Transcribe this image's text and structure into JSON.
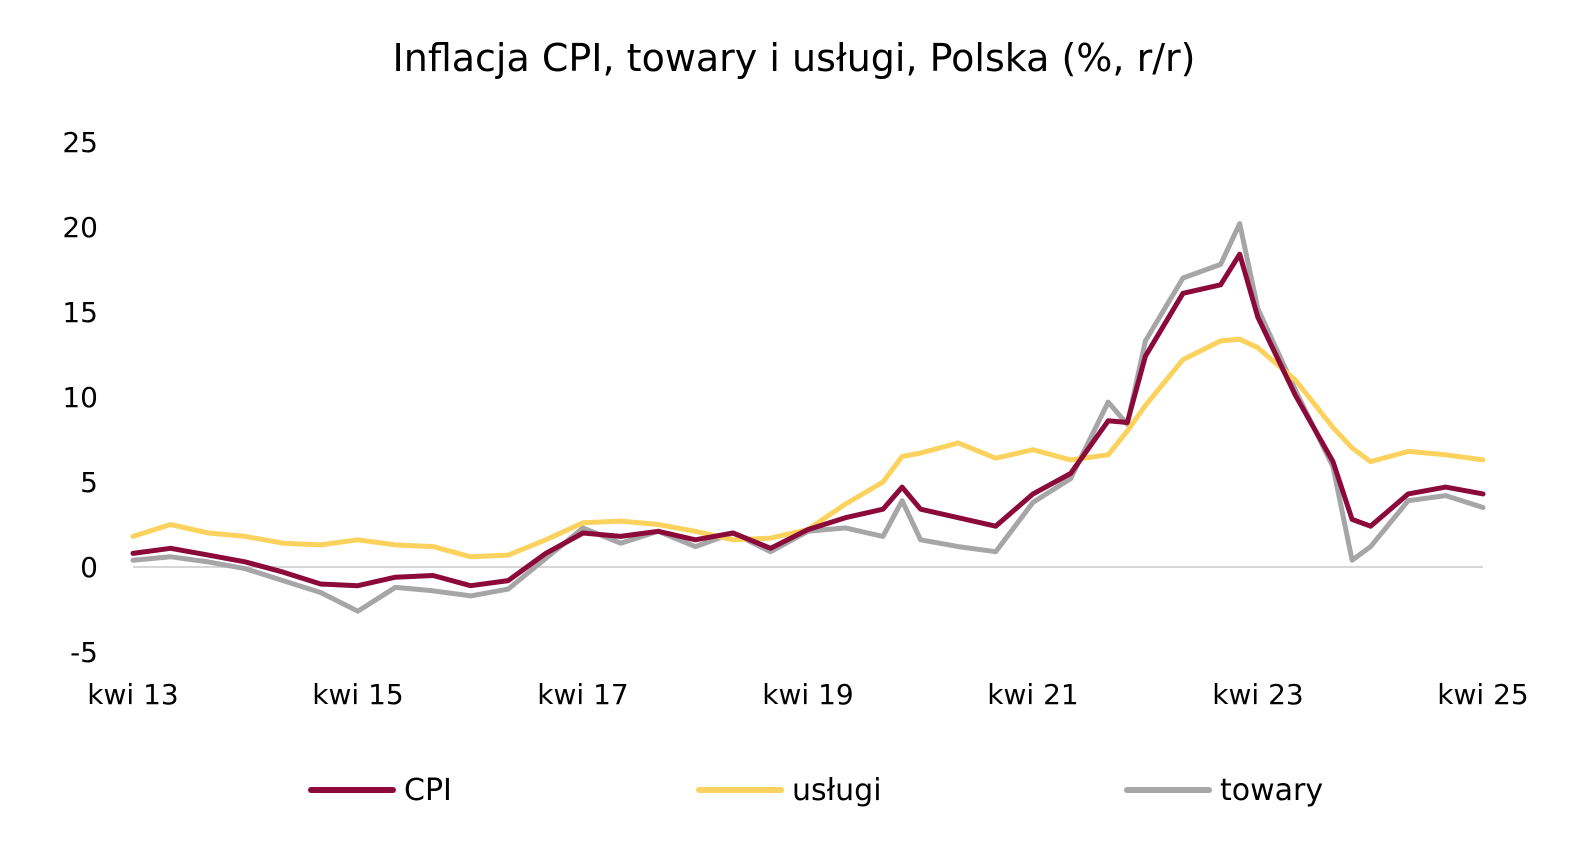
{
  "chart_data": {
    "type": "line",
    "title": "Inflacja CPI, towary i usługi, Polska (%, r/r)",
    "xlabel": "",
    "ylabel": "",
    "ylim": [
      -5,
      25
    ],
    "yticks": [
      "25",
      "20",
      "15",
      "10",
      "5",
      "0",
      "-5"
    ],
    "xticks": [
      "kwi 13",
      "kwi 15",
      "kwi 17",
      "kwi 19",
      "kwi 21",
      "kwi 23",
      "kwi 25"
    ],
    "grid": false,
    "legend_position": "bottom",
    "x": [
      "2013-04",
      "2013-08",
      "2013-12",
      "2014-04",
      "2014-08",
      "2014-12",
      "2015-04",
      "2015-08",
      "2015-12",
      "2016-04",
      "2016-08",
      "2016-12",
      "2017-04",
      "2017-08",
      "2017-12",
      "2018-04",
      "2018-08",
      "2018-12",
      "2019-04",
      "2019-08",
      "2019-12",
      "2020-02",
      "2020-04",
      "2020-08",
      "2020-12",
      "2021-04",
      "2021-08",
      "2021-12",
      "2022-02",
      "2022-04",
      "2022-08",
      "2022-12",
      "2023-02",
      "2023-04",
      "2023-08",
      "2023-12",
      "2024-02",
      "2024-04",
      "2024-08",
      "2024-12",
      "2025-04"
    ],
    "series": [
      {
        "name": "CPI",
        "color": "#8b0a3a",
        "values": [
          0.8,
          1.1,
          0.7,
          0.3,
          -0.3,
          -1.0,
          -1.1,
          -0.6,
          -0.5,
          -1.1,
          -0.8,
          0.8,
          2.0,
          1.8,
          2.1,
          1.6,
          2.0,
          1.1,
          2.2,
          2.9,
          3.4,
          4.7,
          3.4,
          2.9,
          2.4,
          4.3,
          5.5,
          8.6,
          8.5,
          12.4,
          16.1,
          16.6,
          18.4,
          14.7,
          10.1,
          6.2,
          2.8,
          2.4,
          4.3,
          4.7,
          4.3
        ]
      },
      {
        "name": "usługi",
        "color": "#fcd25f",
        "values": [
          1.8,
          2.5,
          2.0,
          1.8,
          1.4,
          1.3,
          1.6,
          1.3,
          1.2,
          0.6,
          0.7,
          1.6,
          2.6,
          2.7,
          2.5,
          2.1,
          1.6,
          1.7,
          2.2,
          3.7,
          5.0,
          6.5,
          6.7,
          7.3,
          6.4,
          6.9,
          6.3,
          6.6,
          8.0,
          9.5,
          12.2,
          13.3,
          13.4,
          12.9,
          11.0,
          8.2,
          7.0,
          6.2,
          6.8,
          6.6,
          6.3
        ]
      },
      {
        "name": "towary",
        "color": "#a6a6a6",
        "values": [
          0.4,
          0.6,
          0.3,
          -0.1,
          -0.8,
          -1.5,
          -2.6,
          -1.2,
          -1.4,
          -1.7,
          -1.3,
          0.5,
          2.3,
          1.4,
          2.1,
          1.2,
          2.0,
          0.9,
          2.1,
          2.3,
          1.8,
          3.9,
          1.6,
          1.2,
          0.9,
          3.8,
          5.2,
          9.7,
          8.4,
          13.3,
          17.0,
          17.8,
          20.2,
          15.2,
          10.4,
          5.9,
          0.4,
          1.2,
          3.9,
          4.2,
          3.5
        ]
      }
    ]
  }
}
